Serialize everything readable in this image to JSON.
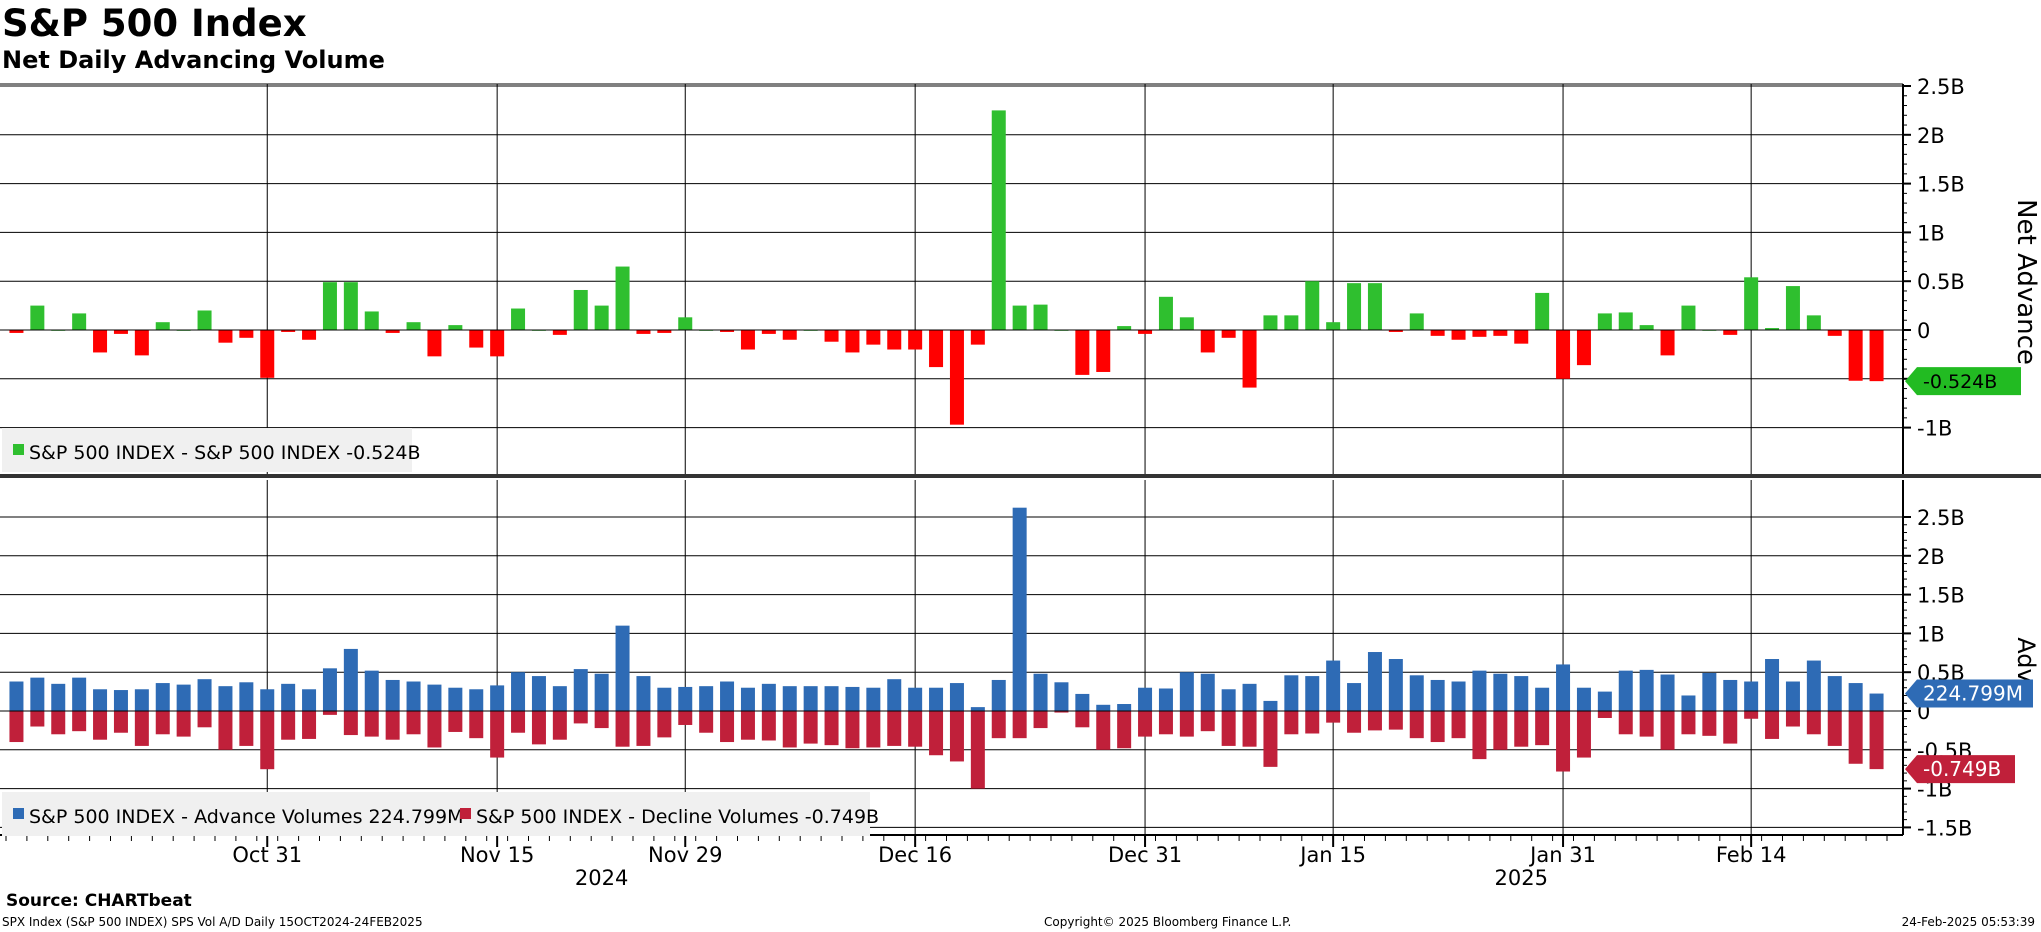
{
  "title": "S&P 500 Index",
  "subtitle": "Net Daily Advancing Volume",
  "source": "Source: CHARTbeat",
  "footer_left": "SPX Index (S&P 500 INDEX) SPS Vol A/D  Daily 15OCT2024-24FEB2025",
  "footer_center": "Copyright© 2025 Bloomberg Finance L.P.",
  "footer_right": "24-Feb-2025 05:53:39",
  "colors": {
    "net_positive": "#2fbf2f",
    "net_negative": "#ff0000",
    "advance": "#2e6bb5",
    "decline": "#c0203a",
    "label_green": "#22bb22",
    "label_blue": "#2e6bb5",
    "label_red": "#c0203a"
  },
  "chart_data": [
    {
      "type": "bar",
      "ylabel": "Net Advance",
      "ylim": [
        -1.5,
        2.5
      ],
      "yticks": [
        "2.5B",
        "2B",
        "1.5B",
        "1B",
        "0.5B",
        "0",
        "-0.5B",
        "-1B"
      ],
      "tick_values": [
        2.5,
        2,
        1.5,
        1,
        0.5,
        0,
        -0.5,
        -1
      ],
      "last_value_label": "-0.524B",
      "legend": "S&P 500 INDEX - S&P 500 INDEX -0.524B",
      "series": [
        {
          "name": "S&P 500 INDEX",
          "values": [
            -0.03,
            0.25,
            0.0,
            0.17,
            -0.23,
            -0.04,
            -0.26,
            0.08,
            0.0,
            0.2,
            -0.13,
            -0.08,
            -0.49,
            -0.02,
            -0.1,
            0.49,
            0.49,
            0.19,
            -0.03,
            0.08,
            -0.27,
            0.05,
            -0.18,
            -0.27,
            0.22,
            0.0,
            -0.05,
            0.41,
            0.25,
            0.65,
            -0.04,
            -0.03,
            0.13,
            0.0,
            -0.02,
            -0.2,
            -0.04,
            -0.1,
            0.0,
            -0.12,
            -0.23,
            -0.15,
            -0.2,
            -0.2,
            -0.38,
            -0.97,
            -0.15,
            2.25,
            0.25,
            0.26,
            0.0,
            -0.46,
            -0.43,
            0.04,
            -0.04,
            0.34,
            0.13,
            -0.23,
            -0.08,
            -0.59,
            0.15,
            0.15,
            0.5,
            0.08,
            0.48,
            0.48,
            -0.02,
            0.17,
            -0.06,
            -0.1,
            -0.07,
            -0.06,
            -0.14,
            0.38,
            -0.5,
            -0.36,
            0.17,
            0.18,
            0.05,
            -0.26,
            0.25,
            0.0,
            -0.05,
            0.54,
            0.02,
            0.45,
            0.15,
            -0.06,
            -0.52,
            -0.524
          ]
        }
      ]
    },
    {
      "type": "bar",
      "ylabel": "Adv",
      "ylim": [
        -1.6,
        2.7
      ],
      "yticks": [
        "2.5B",
        "2B",
        "1.5B",
        "1B",
        "0.5B",
        "0",
        "-0.5B",
        "-1B",
        "-1.5B"
      ],
      "tick_values": [
        2.5,
        2,
        1.5,
        1,
        0.5,
        0,
        -0.5,
        -1,
        -1.5
      ],
      "last_value_labels": [
        "224.799M",
        "-0.749B"
      ],
      "legend": [
        "S&P 500 INDEX - Advance Volumes 224.799M",
        "S&P 500 INDEX - Decline Volumes -0.749B"
      ],
      "series": [
        {
          "name": "S&P 500 INDEX - Advance Volumes",
          "values": [
            0.38,
            0.43,
            0.35,
            0.43,
            0.28,
            0.27,
            0.28,
            0.36,
            0.34,
            0.41,
            0.32,
            0.37,
            0.28,
            0.35,
            0.28,
            0.55,
            0.8,
            0.52,
            0.4,
            0.38,
            0.34,
            0.3,
            0.28,
            0.33,
            0.5,
            0.45,
            0.32,
            0.54,
            0.48,
            1.1,
            0.45,
            0.3,
            0.31,
            0.32,
            0.38,
            0.3,
            0.35,
            0.32,
            0.32,
            0.32,
            0.31,
            0.3,
            0.41,
            0.3,
            0.3,
            0.36,
            0.05,
            0.4,
            2.62,
            0.48,
            0.37,
            0.22,
            0.08,
            0.09,
            0.3,
            0.29,
            0.5,
            0.48,
            0.28,
            0.35,
            0.13,
            0.46,
            0.45,
            0.65,
            0.36,
            0.76,
            0.67,
            0.46,
            0.4,
            0.38,
            0.52,
            0.48,
            0.45,
            0.3,
            0.6,
            0.3,
            0.25,
            0.52,
            0.53,
            0.47,
            0.2,
            0.49,
            0.4,
            0.38,
            0.67,
            0.38,
            0.65,
            0.45,
            0.36,
            0.224799
          ]
        },
        {
          "name": "S&P 500 INDEX - Decline Volumes",
          "values": [
            -0.4,
            -0.2,
            -0.3,
            -0.26,
            -0.37,
            -0.28,
            -0.45,
            -0.3,
            -0.33,
            -0.21,
            -0.5,
            -0.45,
            -0.75,
            -0.37,
            -0.36,
            -0.05,
            -0.31,
            -0.33,
            -0.37,
            -0.3,
            -0.47,
            -0.27,
            -0.35,
            -0.6,
            -0.28,
            -0.43,
            -0.37,
            -0.16,
            -0.22,
            -0.46,
            -0.45,
            -0.34,
            -0.18,
            -0.28,
            -0.4,
            -0.37,
            -0.38,
            -0.47,
            -0.42,
            -0.44,
            -0.48,
            -0.47,
            -0.45,
            -0.46,
            -0.57,
            -0.65,
            -1.0,
            -0.35,
            -0.35,
            -0.22,
            -0.02,
            -0.21,
            -0.5,
            -0.48,
            -0.33,
            -0.3,
            -0.33,
            -0.26,
            -0.45,
            -0.46,
            -0.72,
            -0.3,
            -0.29,
            -0.15,
            -0.28,
            -0.25,
            -0.24,
            -0.35,
            -0.4,
            -0.35,
            -0.62,
            -0.5,
            -0.46,
            -0.44,
            -0.78,
            -0.6,
            -0.09,
            -0.3,
            -0.33,
            -0.5,
            -0.3,
            -0.32,
            -0.42,
            -0.1,
            -0.36,
            -0.2,
            -0.3,
            -0.45,
            -0.68,
            -0.749
          ]
        }
      ]
    }
  ],
  "x_axis": {
    "ticks": [
      "Oct 31",
      "Nov 15",
      "Nov 29",
      "Dec 16",
      "Dec 31",
      "Jan 15",
      "Jan 31",
      "Feb 14"
    ],
    "tick_indices": [
      12,
      23,
      32,
      43,
      54,
      63,
      74,
      83
    ],
    "years": [
      "2024",
      "2025"
    ],
    "year_positions": [
      28,
      72
    ]
  }
}
